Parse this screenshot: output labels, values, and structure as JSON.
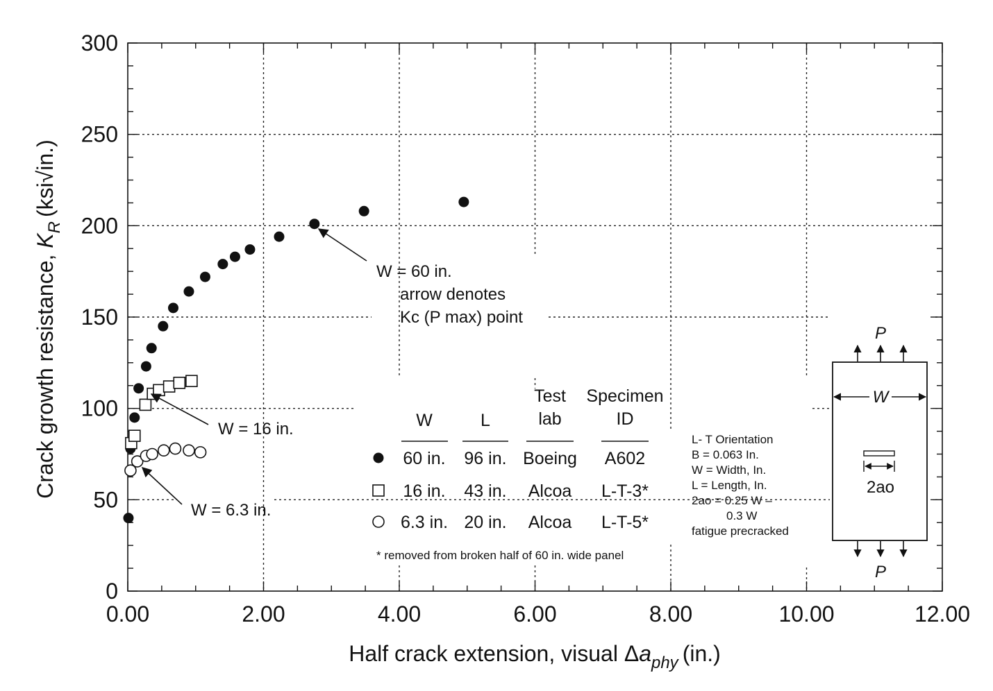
{
  "chart_data": {
    "type": "scatter",
    "xlabel": {
      "main": "Half crack extension, visual Δ",
      "var": "a",
      "sub": "phy",
      "unit": "(in.)"
    },
    "ylabel": {
      "main": "Crack growth resistance, ",
      "var": "K",
      "sub": "R",
      "unit": "(ksi√in.)"
    },
    "xlim": [
      0,
      12
    ],
    "ylim": [
      0,
      300
    ],
    "xticks": [
      {
        "value": 0,
        "label": "0.00"
      },
      {
        "value": 2,
        "label": "2.00"
      },
      {
        "value": 4,
        "label": "4.00"
      },
      {
        "value": 6,
        "label": "6.00"
      },
      {
        "value": 8,
        "label": "8.00"
      },
      {
        "value": 10,
        "label": "10.00"
      },
      {
        "value": 12,
        "label": "12.00"
      }
    ],
    "yticks": [
      {
        "value": 0,
        "label": "0"
      },
      {
        "value": 50,
        "label": "50"
      },
      {
        "value": 100,
        "label": "100"
      },
      {
        "value": 150,
        "label": "150"
      },
      {
        "value": 200,
        "label": "200"
      },
      {
        "value": 250,
        "label": "250"
      },
      {
        "value": 300,
        "label": "300"
      }
    ],
    "grid": "dotted",
    "series": [
      {
        "marker": "filled-circle",
        "points": [
          [
            0.01,
            40
          ],
          [
            0.04,
            78
          ],
          [
            0.1,
            95
          ],
          [
            0.16,
            111
          ],
          [
            0.27,
            123
          ],
          [
            0.35,
            133
          ],
          [
            0.52,
            145
          ],
          [
            0.67,
            155
          ],
          [
            0.9,
            164
          ],
          [
            1.14,
            172
          ],
          [
            1.4,
            179
          ],
          [
            1.58,
            183
          ],
          [
            1.8,
            187
          ],
          [
            2.23,
            194
          ],
          [
            2.75,
            201
          ],
          [
            3.48,
            208
          ],
          [
            4.95,
            213
          ]
        ]
      },
      {
        "marker": "open-square",
        "points": [
          [
            0.05,
            81
          ],
          [
            0.1,
            85
          ],
          [
            0.26,
            102
          ],
          [
            0.37,
            108
          ],
          [
            0.46,
            110
          ],
          [
            0.61,
            112
          ],
          [
            0.76,
            114
          ],
          [
            0.94,
            115
          ]
        ]
      },
      {
        "marker": "open-circle",
        "points": [
          [
            0.04,
            66
          ],
          [
            0.14,
            71
          ],
          [
            0.27,
            74
          ],
          [
            0.36,
            75
          ],
          [
            0.53,
            77
          ],
          [
            0.7,
            78
          ],
          [
            0.9,
            77
          ],
          [
            1.07,
            76
          ]
        ]
      }
    ],
    "annotations": [
      {
        "id": "w60",
        "lines": [
          "W = 60 in.",
          "arrow denotes",
          "Kc (P max) point"
        ]
      },
      {
        "id": "w16",
        "text": "W = 16 in."
      },
      {
        "id": "w63",
        "text": "W = 6.3 in."
      }
    ]
  },
  "table": {
    "headers": {
      "w": "W",
      "l": "L",
      "lab_line1": "Test",
      "lab_line2": "lab",
      "id_line1": "Specimen",
      "id_line2": "ID"
    },
    "rows": [
      {
        "w": "60 in.",
        "l": "96 in.",
        "lab": "Boeing",
        "id": "A602"
      },
      {
        "w": "16 in.",
        "l": "43 in.",
        "lab": "Alcoa",
        "id": "L-T-3*"
      },
      {
        "w": "6.3 in.",
        "l": "20 in.",
        "lab": "Alcoa",
        "id": "L-T-5*"
      }
    ],
    "footnote": "* removed from broken half of 60 in. wide panel"
  },
  "notes": [
    "L- T Orientation",
    "B = 0.063 In.",
    "W = Width, In.",
    "L = Length, In.",
    "2ao = 0.25 W –",
    "0.3 W",
    "fatigue precracked"
  ],
  "specimen": {
    "load_label": "P",
    "width_label": "W",
    "crack_label": "2ao"
  }
}
